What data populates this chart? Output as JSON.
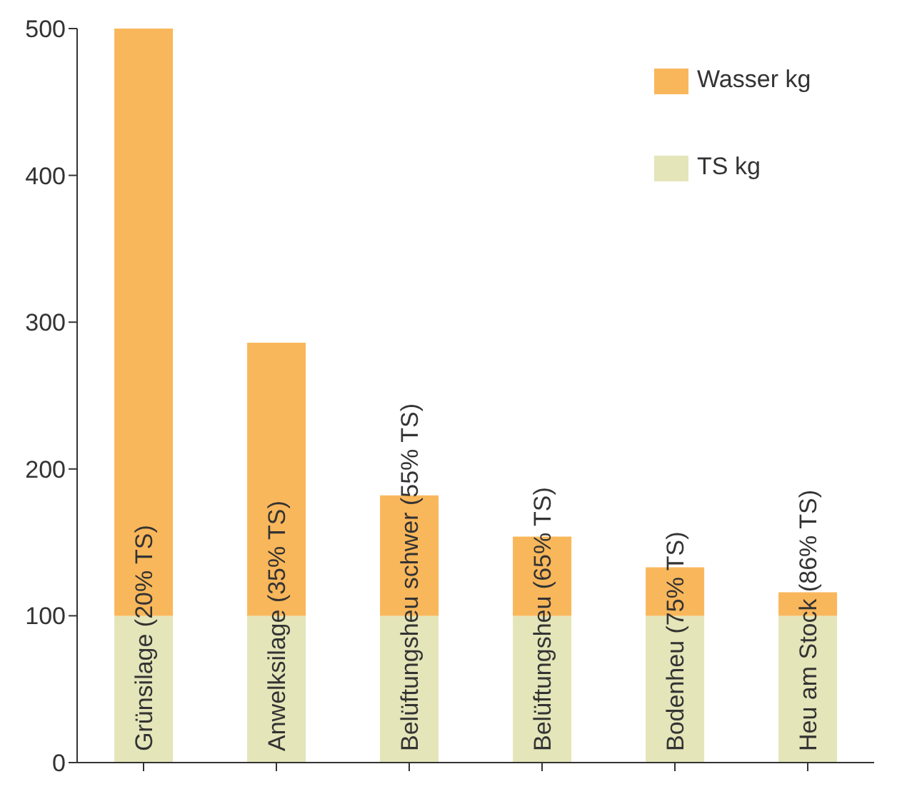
{
  "chart_data": {
    "type": "bar",
    "stacked": true,
    "categories": [
      "Grünsilage (20% TS)",
      "Anwelksilage (35% TS)",
      "Belüftungsheu schwer (55% TS)",
      "Belüftungsheu (65% TS)",
      "Bodenheu (75% TS)",
      "Heu am Stock (86% TS)"
    ],
    "series": [
      {
        "name": "TS kg",
        "color": "#e4e5b9",
        "values": [
          100,
          100,
          100,
          100,
          100,
          100
        ]
      },
      {
        "name": "Wasser kg",
        "color": "#f9b75b",
        "values": [
          400,
          186,
          82,
          54,
          33,
          16
        ]
      }
    ],
    "ylim": [
      0,
      500
    ],
    "yticks": [
      0,
      100,
      200,
      300,
      400,
      500
    ],
    "legend": "top right"
  }
}
